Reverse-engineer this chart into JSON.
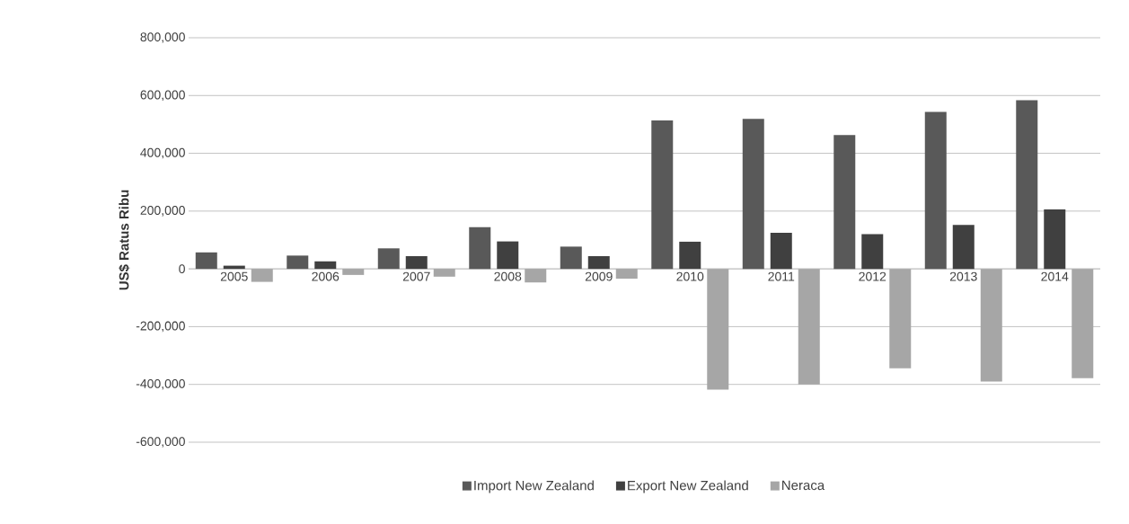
{
  "chart_data": {
    "type": "bar",
    "ylabel": "US$ Ratus Ribu",
    "categories": [
      "2005",
      "2006",
      "2007",
      "2008",
      "2009",
      "2010",
      "2011",
      "2012",
      "2013",
      "2014"
    ],
    "series": [
      {
        "name": "Import New Zealand",
        "color": "#595959",
        "values": [
          57000,
          46000,
          71000,
          144000,
          77000,
          514000,
          519000,
          463000,
          543000,
          584000
        ]
      },
      {
        "name": "Export New Zealand",
        "color": "#404040",
        "values": [
          11000,
          26000,
          44000,
          95000,
          44000,
          94000,
          125000,
          120000,
          152000,
          206000
        ]
      },
      {
        "name": "Neraca",
        "color": "#a6a6a6",
        "values": [
          -45000,
          -21000,
          -27000,
          -47000,
          -34000,
          -418000,
          -400000,
          -344000,
          -390000,
          -378000
        ]
      }
    ],
    "ylim": [
      -600000,
      800000
    ],
    "yticks": [
      {
        "value": -600000,
        "label": "-600,000"
      },
      {
        "value": -400000,
        "label": "-400,000"
      },
      {
        "value": -200000,
        "label": "-200,000"
      },
      {
        "value": 0,
        "label": "0"
      },
      {
        "value": 200000,
        "label": "200,000"
      },
      {
        "value": 400000,
        "label": "400,000"
      },
      {
        "value": 600000,
        "label": "600,000"
      },
      {
        "value": 800000,
        "label": "800,000"
      }
    ],
    "grid": "y",
    "legend": "bottom"
  }
}
